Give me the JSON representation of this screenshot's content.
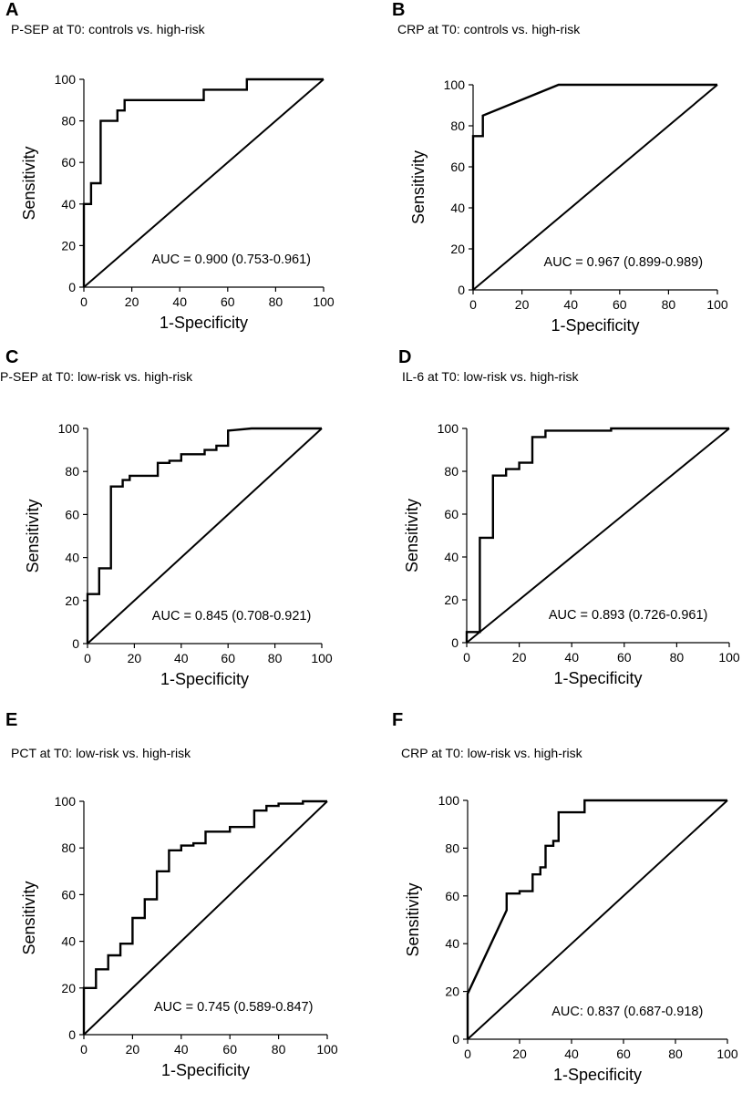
{
  "chart_data": [
    {
      "panel": "A",
      "type": "line",
      "title": "P-SEP at T0: controls vs. high-risk",
      "xlabel": "1-Specificity",
      "ylabel": "Sensitivity",
      "xlim": [
        0,
        100
      ],
      "ylim": [
        0,
        100
      ],
      "xticks": [
        0,
        20,
        40,
        60,
        80,
        100
      ],
      "yticks": [
        0,
        20,
        40,
        60,
        80,
        100
      ],
      "auc_label": "AUC = 0.900 (0.753-0.961)",
      "series": [
        {
          "name": "ROC",
          "x": [
            0,
            0,
            3,
            3,
            7,
            7,
            14,
            14,
            17,
            17,
            50,
            50,
            68,
            68,
            100
          ],
          "y": [
            0,
            40,
            40,
            50,
            50,
            80,
            80,
            85,
            85,
            90,
            90,
            95,
            95,
            100,
            100
          ]
        },
        {
          "name": "Reference",
          "x": [
            0,
            100
          ],
          "y": [
            0,
            100
          ]
        }
      ]
    },
    {
      "panel": "B",
      "type": "line",
      "title": "CRP at T0: controls vs. high-risk",
      "xlabel": "1-Specificity",
      "ylabel": "Sensitivity",
      "xlim": [
        0,
        100
      ],
      "ylim": [
        0,
        100
      ],
      "xticks": [
        0,
        20,
        40,
        60,
        80,
        100
      ],
      "yticks": [
        0,
        20,
        40,
        60,
        80,
        100
      ],
      "auc_label": "AUC = 0.967 (0.899-0.989)",
      "series": [
        {
          "name": "ROC",
          "x": [
            0,
            0,
            4,
            4,
            35,
            100
          ],
          "y": [
            0,
            75,
            75,
            85,
            100,
            100
          ]
        },
        {
          "name": "Reference",
          "x": [
            0,
            100
          ],
          "y": [
            0,
            100
          ]
        }
      ]
    },
    {
      "panel": "C",
      "type": "line",
      "title": "P-SEP at T0: low-risk vs. high-risk",
      "xlabel": "1-Specificity",
      "ylabel": "Sensitivity",
      "xlim": [
        0,
        100
      ],
      "ylim": [
        0,
        100
      ],
      "xticks": [
        0,
        20,
        40,
        60,
        80,
        100
      ],
      "yticks": [
        0,
        20,
        40,
        60,
        80,
        100
      ],
      "auc_label": "AUC = 0.845 (0.708-0.921)",
      "series": [
        {
          "name": "ROC",
          "x": [
            0,
            0,
            5,
            5,
            10,
            10,
            15,
            15,
            18,
            18,
            20,
            20,
            30,
            30,
            35,
            35,
            40,
            40,
            50,
            50,
            55,
            55,
            60,
            60,
            70,
            100
          ],
          "y": [
            0,
            23,
            23,
            35,
            35,
            73,
            73,
            76,
            76,
            78,
            78,
            78,
            78,
            84,
            84,
            85,
            85,
            88,
            88,
            90,
            90,
            92,
            92,
            99,
            100,
            100
          ]
        },
        {
          "name": "Reference",
          "x": [
            0,
            100
          ],
          "y": [
            0,
            100
          ]
        }
      ]
    },
    {
      "panel": "D",
      "type": "line",
      "title": "IL-6 at T0: low-risk vs. high-risk",
      "xlabel": "1-Specificity",
      "ylabel": "Sensitivity",
      "xlim": [
        0,
        100
      ],
      "ylim": [
        0,
        100
      ],
      "xticks": [
        0,
        20,
        40,
        60,
        80,
        100
      ],
      "yticks": [
        0,
        20,
        40,
        60,
        80,
        100
      ],
      "auc_label": "AUC = 0.893 (0.726-0.961)",
      "series": [
        {
          "name": "ROC",
          "x": [
            0,
            0,
            5,
            5,
            10,
            10,
            15,
            15,
            20,
            20,
            25,
            25,
            30,
            30,
            55,
            55,
            100
          ],
          "y": [
            0,
            5,
            5,
            49,
            49,
            78,
            78,
            81,
            81,
            84,
            84,
            96,
            96,
            99,
            99,
            100,
            100
          ]
        },
        {
          "name": "Reference",
          "x": [
            0,
            100
          ],
          "y": [
            0,
            100
          ]
        }
      ]
    },
    {
      "panel": "E",
      "type": "line",
      "title": "PCT at T0: low-risk vs. high-risk",
      "xlabel": "1-Specificity",
      "ylabel": "Sensitivity",
      "xlim": [
        0,
        100
      ],
      "ylim": [
        0,
        100
      ],
      "xticks": [
        0,
        20,
        40,
        60,
        80,
        100
      ],
      "yticks": [
        0,
        20,
        40,
        60,
        80,
        100
      ],
      "auc_label": "AUC = 0.745 (0.589-0.847)",
      "series": [
        {
          "name": "ROC",
          "x": [
            0,
            0,
            5,
            5,
            10,
            10,
            15,
            15,
            20,
            20,
            25,
            25,
            30,
            30,
            35,
            35,
            40,
            40,
            45,
            45,
            50,
            50,
            60,
            60,
            70,
            70,
            75,
            75,
            80,
            80,
            90,
            90,
            100
          ],
          "y": [
            0,
            20,
            20,
            28,
            28,
            34,
            34,
            39,
            39,
            50,
            50,
            58,
            58,
            70,
            70,
            79,
            79,
            81,
            81,
            82,
            82,
            87,
            87,
            89,
            89,
            96,
            96,
            98,
            98,
            99,
            99,
            100,
            100
          ]
        },
        {
          "name": "Reference",
          "x": [
            0,
            100
          ],
          "y": [
            0,
            100
          ]
        }
      ]
    },
    {
      "panel": "F",
      "type": "line",
      "title": "CRP at T0: low-risk vs. high-risk",
      "xlabel": "1-Specificity",
      "ylabel": "Sensitivity",
      "xlim": [
        0,
        100
      ],
      "ylim": [
        0,
        100
      ],
      "xticks": [
        0,
        20,
        40,
        60,
        80,
        100
      ],
      "yticks": [
        0,
        20,
        40,
        60,
        80,
        100
      ],
      "auc_label": "AUC: 0.837 (0.687-0.918)",
      "series": [
        {
          "name": "ROC",
          "x": [
            0,
            0,
            15,
            15,
            20,
            20,
            25,
            25,
            28,
            28,
            30,
            30,
            33,
            33,
            35,
            35,
            45,
            45,
            100
          ],
          "y": [
            0,
            19,
            54,
            61,
            61,
            62,
            62,
            69,
            69,
            72,
            72,
            81,
            81,
            83,
            83,
            95,
            95,
            100,
            100
          ]
        },
        {
          "name": "Reference",
          "x": [
            0,
            100
          ],
          "y": [
            0,
            100
          ]
        }
      ]
    }
  ]
}
